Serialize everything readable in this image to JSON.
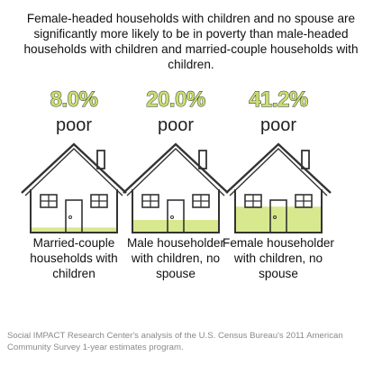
{
  "headline": "Female-headed households with children and no spouse are significantly more likely to be in poverty than male-headed households with children and married-couple households with children.",
  "chart_data": {
    "type": "bar",
    "title": "Female-headed households with children and no spouse are significantly more likely to be in poverty than male-headed households with children and married-couple households with children.",
    "categories": [
      [
        "Married-couple",
        "households with",
        "children"
      ],
      [
        "Male householder",
        "with children, no",
        "spouse"
      ],
      [
        "Female householder",
        "with children, no",
        "spouse"
      ]
    ],
    "values": [
      8.0,
      20.0,
      41.2
    ],
    "value_labels": [
      "8.0%",
      "20.0%",
      "41.2%"
    ],
    "value_suffix": "poor",
    "ylim": [
      0,
      100
    ]
  },
  "colors": {
    "fill": "#d8e88f",
    "value_text": "#c8df6e",
    "value_stroke": "#2b2b2b",
    "outline": "#333333"
  },
  "footer": "Social IMPACT Research Center's analysis of the U.S. Census Bureau's 2011 American Community Survey 1-year estimates program."
}
